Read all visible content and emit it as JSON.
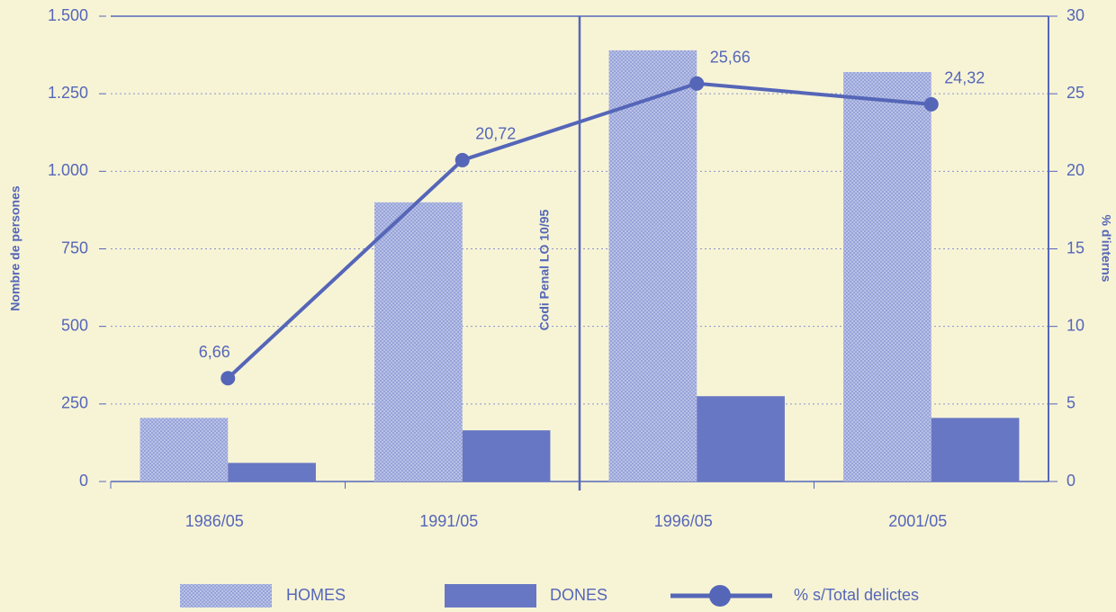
{
  "chart_data": {
    "type": "bar_line",
    "y_label": "Nombre de persones",
    "y2_label": "% d'interns",
    "annotation": "Codi Penal LO 10/95",
    "categories": [
      "1986/05",
      "1991/05",
      "1996/05",
      "2001/05"
    ],
    "series": [
      {
        "name": "HOMES",
        "color": "#a9b3e0",
        "values": [
          205,
          900,
          1390,
          1320
        ]
      },
      {
        "name": "DONES",
        "color": "#6877c4",
        "values": [
          60,
          165,
          275,
          205
        ]
      },
      {
        "name": "% s/Total delictes",
        "color": "#5566b8",
        "axis": "y2",
        "values": [
          6.66,
          20.72,
          25.66,
          24.32
        ],
        "value_labels": [
          "6,66",
          "20,72",
          "25,66",
          "24,32"
        ]
      }
    ],
    "ylim": [
      0,
      1500
    ],
    "yticks": [
      0,
      250,
      500,
      750,
      {
        "value": 1000,
        "label": "1.000"
      },
      {
        "value": 1250,
        "label": "1.250"
      },
      {
        "value": 1500,
        "label": "1.500"
      }
    ],
    "y2lim": [
      0,
      30
    ],
    "y2ticks": [
      0,
      5,
      10,
      15,
      20,
      25,
      30
    ],
    "grid": true
  }
}
